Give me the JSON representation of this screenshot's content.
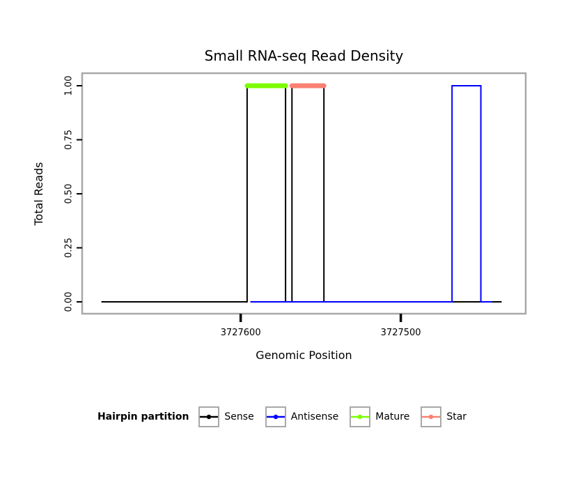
{
  "chart_data": {
    "type": "area",
    "title": "Small RNA-seq Read Density",
    "xlabel": "Genomic Position",
    "ylabel": "Total Reads",
    "x_reversed": true,
    "xlim": [
      3727699,
      3727422
    ],
    "ylim": [
      0,
      1
    ],
    "x_ticks": [
      3727600,
      3727500
    ],
    "x_tick_labels": [
      "3727600",
      "3727500"
    ],
    "y_ticks": [
      0,
      0.25,
      0.5,
      0.75,
      1
    ],
    "y_tick_labels": [
      "0.00",
      "0.25",
      "0.50",
      "0.75",
      "1.00"
    ],
    "grid": false,
    "colors": {
      "panel_border": "#a8a8a8",
      "axis": "#000000",
      "sense": "#000000",
      "antisense": "#0000ff",
      "mature": "#7cfc00",
      "star": "#fa8072"
    },
    "series": [
      {
        "name": "Sense",
        "color": "#000000",
        "width": 2,
        "points": [
          [
            3727687,
            0
          ],
          [
            3727596,
            0
          ],
          [
            3727596,
            1
          ],
          [
            3727572,
            1
          ],
          [
            3727572,
            0
          ],
          [
            3727568,
            0
          ],
          [
            3727568,
            1
          ],
          [
            3727548,
            1
          ],
          [
            3727548,
            0
          ],
          [
            3727437,
            0
          ]
        ]
      },
      {
        "name": "Antisense",
        "color": "#0000ff",
        "width": 2,
        "points": [
          [
            3727594,
            0
          ],
          [
            3727468,
            0
          ],
          [
            3727468,
            1
          ],
          [
            3727450,
            1
          ],
          [
            3727450,
            0
          ],
          [
            3727443,
            0
          ]
        ]
      },
      {
        "name": "Mature",
        "color": "#7cfc00",
        "width": 7,
        "points": [
          [
            3727596,
            1
          ],
          [
            3727572,
            1
          ]
        ]
      },
      {
        "name": "Star",
        "color": "#fa8072",
        "width": 7,
        "points": [
          [
            3727568,
            1
          ],
          [
            3727548,
            1
          ]
        ]
      }
    ],
    "legend": {
      "title": "Hairpin partition",
      "position": "bottom",
      "entries": [
        {
          "label": "Sense",
          "color": "#000000"
        },
        {
          "label": "Antisense",
          "color": "#0000ff"
        },
        {
          "label": "Mature",
          "color": "#7cfc00"
        },
        {
          "label": "Star",
          "color": "#fa8072"
        }
      ]
    }
  }
}
